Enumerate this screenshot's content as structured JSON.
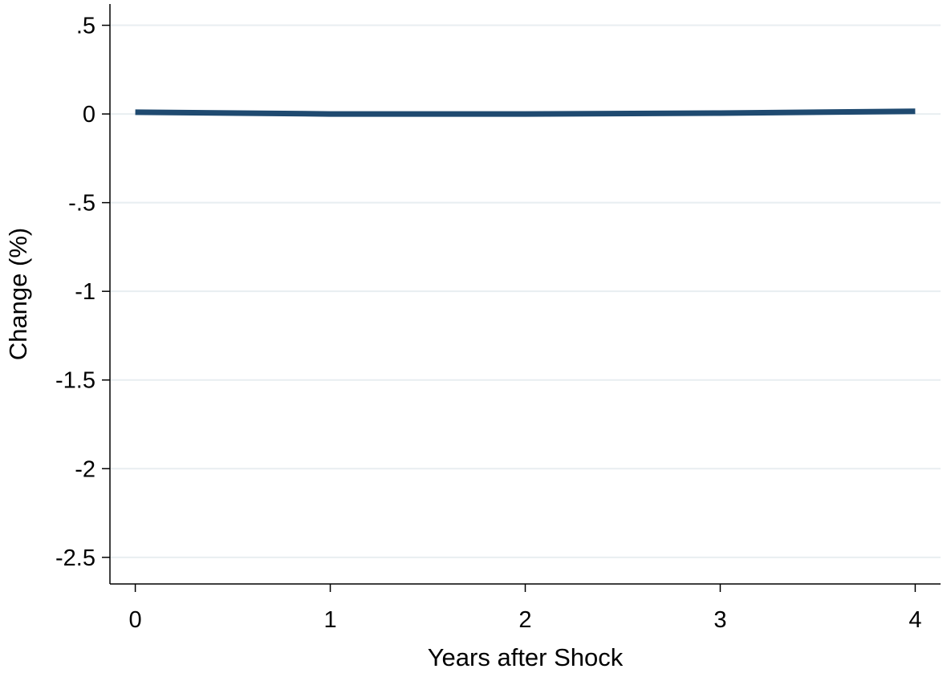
{
  "chart_data": {
    "type": "line",
    "xlabel": "Years after Shock",
    "ylabel": "Change (%)",
    "x": [
      0,
      1,
      2,
      3,
      4
    ],
    "series": [
      {
        "values": [
          0.01,
          0.0,
          0.0,
          0.005,
          0.015
        ]
      }
    ],
    "xlim": [
      -0.13,
      4.13
    ],
    "ylim": [
      -2.65,
      0.62
    ],
    "xticks": [
      0,
      1,
      2,
      3,
      4
    ],
    "xtick_labels": [
      "0",
      "1",
      "2",
      "3",
      "4"
    ],
    "yticks": [
      0.5,
      0,
      -0.5,
      -1,
      -1.5,
      -2,
      -2.5
    ],
    "ytick_labels": [
      ".5",
      "0",
      "-.5",
      "-1",
      "-1.5",
      "-2",
      "-2.5"
    ],
    "grid": true,
    "legend": "none",
    "colors": {
      "line": "#1f4a70",
      "grid": "#e8eef1",
      "axis": "#000000"
    }
  }
}
